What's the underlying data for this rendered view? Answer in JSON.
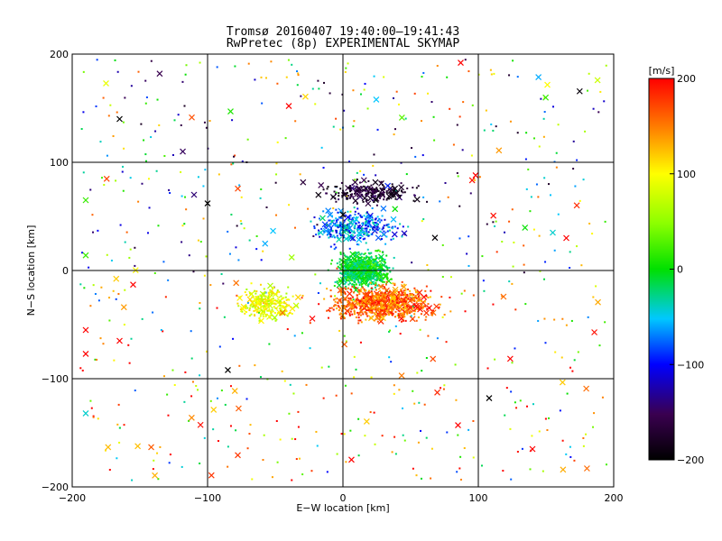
{
  "chart_data": {
    "type": "scatter",
    "title": "Tromsø 20160407 19:40:00–19:41:43",
    "subtitle": "RwPretec (8p) EXPERIMENTAL SKYMAP",
    "xlabel": "E−W location [km]",
    "ylabel": "N−S location [km]",
    "xlim": [
      -200,
      200
    ],
    "ylim": [
      -200,
      200
    ],
    "xticks": [
      -200,
      -100,
      0,
      100,
      200
    ],
    "yticks": [
      -200,
      -100,
      0,
      100,
      200
    ],
    "xtick_labels": [
      "−200",
      "−100",
      "0",
      "100",
      "200"
    ],
    "ytick_labels": [
      "−200",
      "−100",
      "0",
      "100",
      "200"
    ],
    "grid": true,
    "colorbar": {
      "label": "[m/s]",
      "min": -200,
      "max": 200,
      "ticks": [
        200,
        100,
        0,
        -100,
        -200
      ],
      "tick_labels": [
        "200",
        "100",
        "0",
        "−100",
        "−200"
      ],
      "colormap": "rainbow (black-purple-blue-cyan-green-yellow-red)"
    },
    "clusters": [
      {
        "name": "northern_band",
        "x": [
          -20,
          60
        ],
        "y": [
          60,
          85
        ],
        "v": [
          -200,
          -140
        ]
      },
      {
        "name": "central_north",
        "x": [
          -30,
          50
        ],
        "y": [
          20,
          60
        ],
        "v": [
          -120,
          -20
        ]
      },
      {
        "name": "center_cyan_green",
        "x": [
          -10,
          40
        ],
        "y": [
          -20,
          20
        ],
        "v": [
          -40,
          20
        ]
      },
      {
        "name": "south_red",
        "x": [
          -20,
          80
        ],
        "y": [
          -50,
          -10
        ],
        "v": [
          120,
          200
        ]
      },
      {
        "name": "west_yellow",
        "x": [
          -80,
          -30
        ],
        "y": [
          -50,
          -10
        ],
        "v": [
          60,
          120
        ]
      }
    ],
    "sample_crosses": [
      {
        "x": -165,
        "y": 140,
        "v": -200
      },
      {
        "x": -83,
        "y": 147,
        "v": 10
      },
      {
        "x": -175,
        "y": 173,
        "v": 90
      },
      {
        "x": 87,
        "y": 192,
        "v": 200
      },
      {
        "x": -40,
        "y": 152,
        "v": 200
      },
      {
        "x": -190,
        "y": 65,
        "v": 20
      },
      {
        "x": -190,
        "y": 14,
        "v": 20
      },
      {
        "x": -190,
        "y": -55,
        "v": 200
      },
      {
        "x": -190,
        "y": -77,
        "v": 200
      },
      {
        "x": -190,
        "y": -132,
        "v": -40
      },
      {
        "x": 155,
        "y": 35,
        "v": -40
      },
      {
        "x": 165,
        "y": 30,
        "v": 200
      },
      {
        "x": 140,
        "y": -165,
        "v": 200
      },
      {
        "x": -85,
        "y": -92,
        "v": -200
      },
      {
        "x": 108,
        "y": -118,
        "v": -200
      },
      {
        "x": 98,
        "y": 88,
        "v": 200
      },
      {
        "x": -100,
        "y": 62,
        "v": -200
      },
      {
        "x": -110,
        "y": 70,
        "v": -140
      },
      {
        "x": 85,
        "y": -143,
        "v": 200
      },
      {
        "x": -165,
        "y": -65,
        "v": 200
      }
    ]
  }
}
